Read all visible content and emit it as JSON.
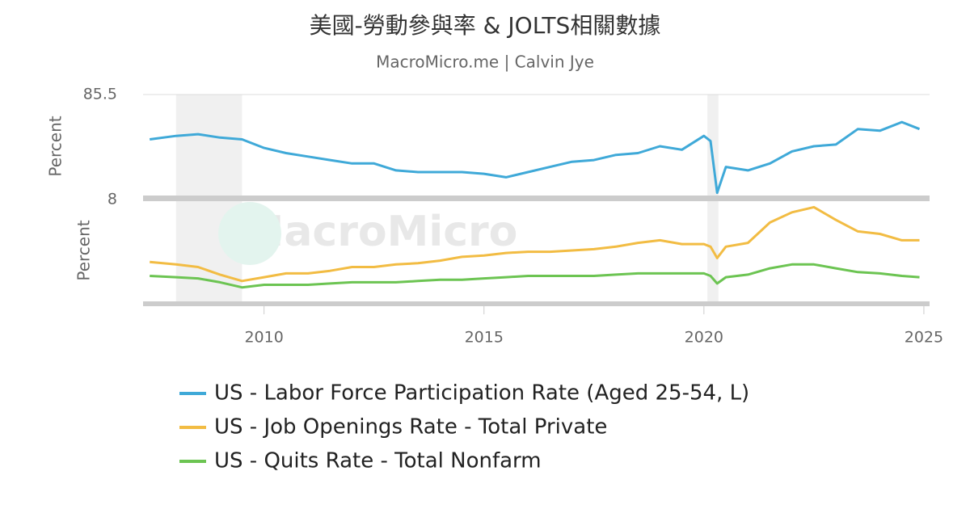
{
  "chart_data": {
    "type": "line",
    "title": "美國-勞動參與率 & JOLTS相關數據",
    "subtitle": "MacroMicro.me | Calvin Jye",
    "watermark": "MacroMicro",
    "ylabel": "Percent",
    "y2label": "Percent",
    "x": [
      2007.4,
      2008.0,
      2008.5,
      2009.0,
      2009.5,
      2010.0,
      2010.5,
      2011.0,
      2011.5,
      2012.0,
      2012.5,
      2013.0,
      2013.5,
      2014.0,
      2014.5,
      2015.0,
      2015.5,
      2016.0,
      2016.5,
      2017.0,
      2017.5,
      2018.0,
      2018.5,
      2019.0,
      2019.5,
      2020.0,
      2020.15,
      2020.3,
      2020.5,
      2021.0,
      2021.5,
      2022.0,
      2022.5,
      2023.0,
      2023.5,
      2024.0,
      2024.5,
      2024.9
    ],
    "xlim": [
      2007.25,
      2025.13
    ],
    "xticks": [
      2010,
      2015,
      2020,
      2025
    ],
    "ylim": [
      79.5,
      85.5
    ],
    "yticks": [
      85.5
    ],
    "y2lim": [
      0,
      8
    ],
    "y2ticks": [
      8
    ],
    "recessions": [
      [
        2008.0,
        2009.5
      ],
      [
        2020.08,
        2020.33
      ]
    ],
    "series": [
      {
        "name": "US - Labor Force Participation Rate (Aged 25-54, L)",
        "color": "#3fa9d8",
        "axis": "y",
        "values": [
          82.9,
          83.1,
          83.2,
          83.0,
          82.9,
          82.4,
          82.1,
          81.9,
          81.7,
          81.5,
          81.5,
          81.1,
          81.0,
          81.0,
          81.0,
          80.9,
          80.7,
          81.0,
          81.3,
          81.6,
          81.7,
          82.0,
          82.1,
          82.5,
          82.3,
          83.1,
          82.8,
          79.8,
          81.3,
          81.1,
          81.5,
          82.2,
          82.5,
          82.6,
          83.5,
          83.4,
          83.9,
          83.5
        ]
      },
      {
        "name": "US - Job Openings Rate - Total Private",
        "color": "#f2bc43",
        "axis": "y2",
        "values": [
          3.1,
          2.9,
          2.7,
          2.1,
          1.6,
          1.9,
          2.2,
          2.2,
          2.4,
          2.7,
          2.7,
          2.9,
          3.0,
          3.2,
          3.5,
          3.6,
          3.8,
          3.9,
          3.9,
          4.0,
          4.1,
          4.3,
          4.6,
          4.8,
          4.5,
          4.5,
          4.3,
          3.4,
          4.3,
          4.6,
          6.2,
          7.0,
          7.4,
          6.4,
          5.5,
          5.3,
          4.8,
          4.8
        ]
      },
      {
        "name": "US - Quits Rate - Total Nonfarm",
        "color": "#6cc452",
        "axis": "y2",
        "values": [
          2.0,
          1.9,
          1.8,
          1.5,
          1.1,
          1.3,
          1.3,
          1.3,
          1.4,
          1.5,
          1.5,
          1.5,
          1.6,
          1.7,
          1.7,
          1.8,
          1.9,
          2.0,
          2.0,
          2.0,
          2.0,
          2.1,
          2.2,
          2.2,
          2.2,
          2.2,
          2.0,
          1.4,
          1.9,
          2.1,
          2.6,
          2.9,
          2.9,
          2.6,
          2.3,
          2.2,
          2.0,
          1.9
        ]
      }
    ]
  }
}
